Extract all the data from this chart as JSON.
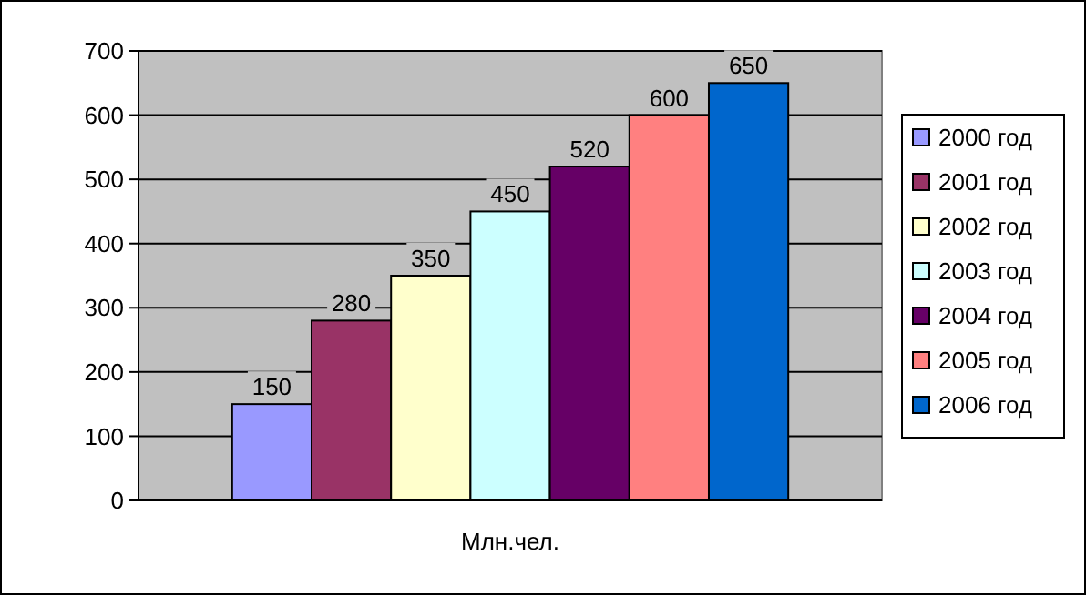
{
  "chart_data": {
    "type": "bar",
    "categories": [
      "Млн.чел."
    ],
    "series": [
      {
        "name": "2000 год",
        "color": "#9999ff",
        "values": [
          150
        ]
      },
      {
        "name": "2001 год",
        "color": "#993366",
        "values": [
          280
        ]
      },
      {
        "name": "2002 год",
        "color": "#ffffcc",
        "values": [
          350
        ]
      },
      {
        "name": "2003 год",
        "color": "#ccffff",
        "values": [
          450
        ]
      },
      {
        "name": "2004 год",
        "color": "#660066",
        "values": [
          520
        ]
      },
      {
        "name": "2005 год",
        "color": "#ff8080",
        "values": [
          600
        ]
      },
      {
        "name": "2006 год",
        "color": "#0066cc",
        "values": [
          650
        ]
      }
    ],
    "ylim": [
      0,
      700
    ],
    "yticks": [
      0,
      100,
      200,
      300,
      400,
      500,
      600,
      700
    ],
    "grid": "y",
    "legend": "right",
    "data_labels": true
  }
}
